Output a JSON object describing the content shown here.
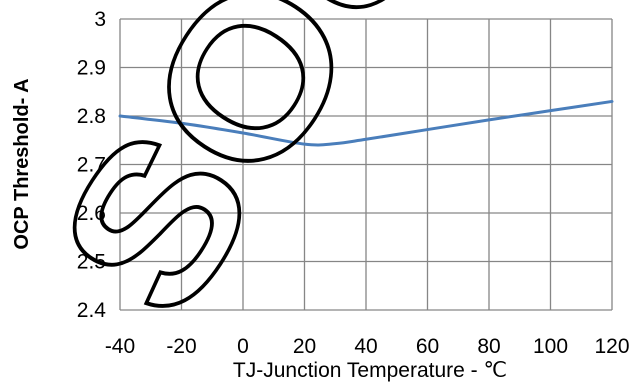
{
  "chart_data": {
    "type": "line",
    "xlabel": "TJ-Junction Temperature - ℃",
    "ylabel": "OCP Threshold- A",
    "xlim": [
      -40,
      120
    ],
    "ylim": [
      2.4,
      3
    ],
    "x_ticks": [
      "-40",
      "-20",
      "0",
      "20",
      "40",
      "60",
      "80",
      "100",
      "120"
    ],
    "y_ticks": [
      "3",
      "2.9",
      "2.8",
      "2.7",
      "2.6",
      "2.5",
      "2.4"
    ],
    "grid": true,
    "series": [
      {
        "x": [
          -40,
          -20,
          0,
          20,
          30,
          40,
          60,
          80,
          100,
          120
        ],
        "y": [
          2.8,
          2.785,
          2.765,
          2.742,
          2.743,
          2.752,
          2.772,
          2.792,
          2.811,
          2.83
        ],
        "color": "#4a7ebb"
      }
    ]
  },
  "watermark": {
    "text": "SOUTHCHIP",
    "color": "#000000"
  },
  "colors": {
    "grid": "#868686",
    "line": "#4a7ebb"
  }
}
